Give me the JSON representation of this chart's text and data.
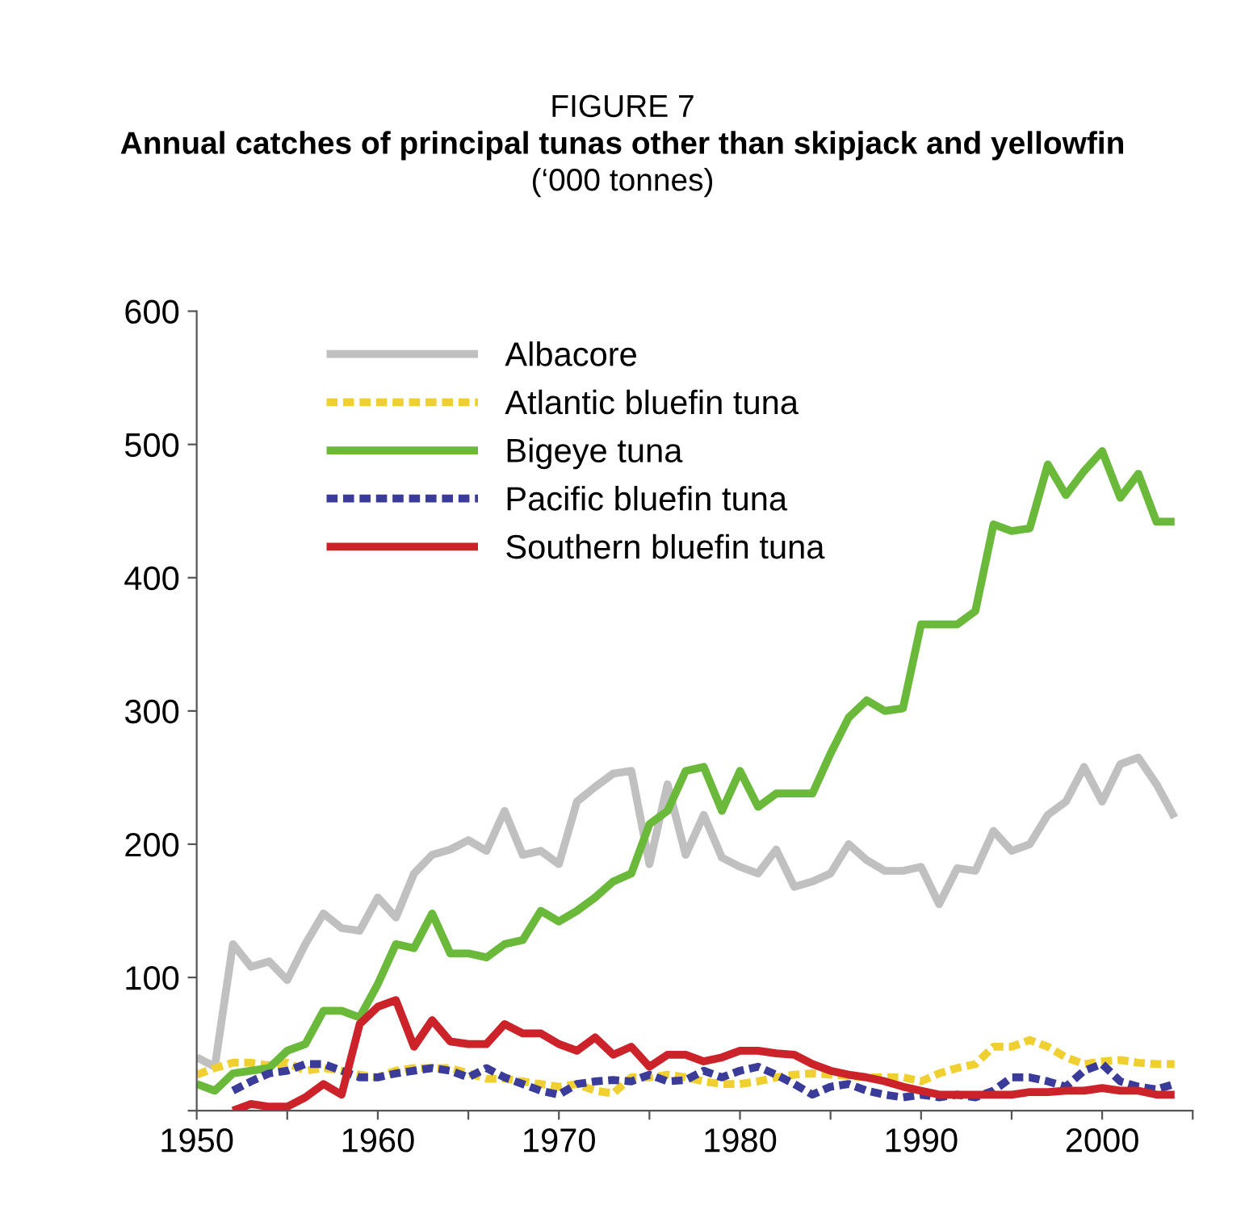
{
  "chart_data": {
    "type": "line",
    "title": "Annual catches of principal tunas other than skipjack and yellowfin",
    "subtitle": "(‘000 tonnes)",
    "annotations": [
      "FIGURE 7"
    ],
    "x": [
      1950,
      1951,
      1952,
      1953,
      1954,
      1955,
      1956,
      1957,
      1958,
      1959,
      1960,
      1961,
      1962,
      1963,
      1964,
      1965,
      1966,
      1967,
      1968,
      1969,
      1970,
      1971,
      1972,
      1973,
      1974,
      1975,
      1976,
      1977,
      1978,
      1979,
      1980,
      1981,
      1982,
      1983,
      1984,
      1985,
      1986,
      1987,
      1988,
      1989,
      1990,
      1991,
      1992,
      1993,
      1994,
      1995,
      1996,
      1997,
      1998,
      1999,
      2000,
      2001,
      2002,
      2003,
      2004
    ],
    "series": [
      {
        "name": "Albacore",
        "color": "#c0c0c0",
        "line_style": "solid",
        "values": [
          40,
          33,
          125,
          108,
          112,
          98,
          125,
          148,
          137,
          135,
          160,
          145,
          178,
          192,
          196,
          203,
          195,
          225,
          192,
          195,
          185,
          232,
          243,
          253,
          255,
          185,
          245,
          192,
          222,
          190,
          183,
          178,
          196,
          168,
          172,
          178,
          200,
          188,
          180,
          180,
          183,
          155,
          182,
          180,
          210,
          195,
          200,
          222,
          232,
          258,
          232,
          260,
          265,
          245,
          220
        ]
      },
      {
        "name": "Atlantic bluefin tuna",
        "color": "#f0d030",
        "line_style": "dashed",
        "values": [
          27,
          32,
          36,
          36,
          34,
          36,
          30,
          32,
          30,
          27,
          25,
          30,
          32,
          32,
          32,
          28,
          24,
          24,
          22,
          20,
          18,
          20,
          15,
          13,
          25,
          25,
          27,
          25,
          22,
          20,
          20,
          22,
          25,
          27,
          28,
          27,
          26,
          25,
          25,
          25,
          22,
          28,
          32,
          35,
          48,
          48,
          53,
          48,
          40,
          35,
          37,
          38,
          36,
          35,
          35
        ]
      },
      {
        "name": "Bigeye tuna",
        "color": "#6bb93a",
        "line_style": "solid",
        "values": [
          20,
          15,
          28,
          30,
          32,
          45,
          50,
          75,
          75,
          70,
          95,
          125,
          122,
          148,
          118,
          118,
          115,
          125,
          128,
          150,
          142,
          150,
          160,
          172,
          178,
          215,
          225,
          255,
          258,
          225,
          255,
          228,
          238,
          238,
          238,
          268,
          295,
          308,
          300,
          302,
          365,
          365,
          365,
          375,
          440,
          435,
          437,
          485,
          462,
          480,
          495,
          460,
          478,
          442,
          442
        ]
      },
      {
        "name": "Pacific bluefin tuna",
        "color": "#3b3b99",
        "line_style": "dashed",
        "values": [
          null,
          null,
          15,
          22,
          28,
          30,
          35,
          35,
          30,
          25,
          25,
          28,
          30,
          32,
          30,
          25,
          32,
          25,
          20,
          15,
          12,
          20,
          22,
          23,
          22,
          27,
          22,
          23,
          30,
          25,
          30,
          33,
          27,
          20,
          12,
          18,
          20,
          15,
          12,
          10,
          12,
          10,
          12,
          10,
          15,
          25,
          25,
          22,
          18,
          30,
          35,
          22,
          18,
          16,
          20
        ]
      },
      {
        "name": "Southern bluefin tuna",
        "color": "#cc2229",
        "line_style": "solid",
        "values": [
          null,
          null,
          0,
          5,
          3,
          3,
          10,
          20,
          12,
          65,
          78,
          83,
          48,
          68,
          52,
          50,
          50,
          65,
          58,
          58,
          50,
          45,
          55,
          42,
          48,
          33,
          42,
          42,
          37,
          40,
          45,
          45,
          43,
          42,
          35,
          30,
          27,
          25,
          22,
          18,
          15,
          12,
          12,
          12,
          12,
          12,
          14,
          14,
          15,
          15,
          17,
          15,
          15,
          12,
          12
        ]
      }
    ],
    "xlim": [
      1950,
      2005
    ],
    "xticks": [
      1950,
      {
        "value": 1955,
        "label": null
      },
      1960,
      {
        "value": 1965,
        "label": null
      },
      1970,
      {
        "value": 1975,
        "label": null
      },
      1980,
      {
        "value": 1985,
        "label": null
      },
      1990,
      {
        "value": 1995,
        "label": null
      },
      2000,
      {
        "value": 2005,
        "label": null
      }
    ],
    "ylim": [
      0,
      600
    ],
    "yticks": [
      {
        "value": 0,
        "label": null
      },
      100,
      200,
      300,
      400,
      500,
      600
    ],
    "grid": false,
    "legend": "top left",
    "marker": "none"
  }
}
